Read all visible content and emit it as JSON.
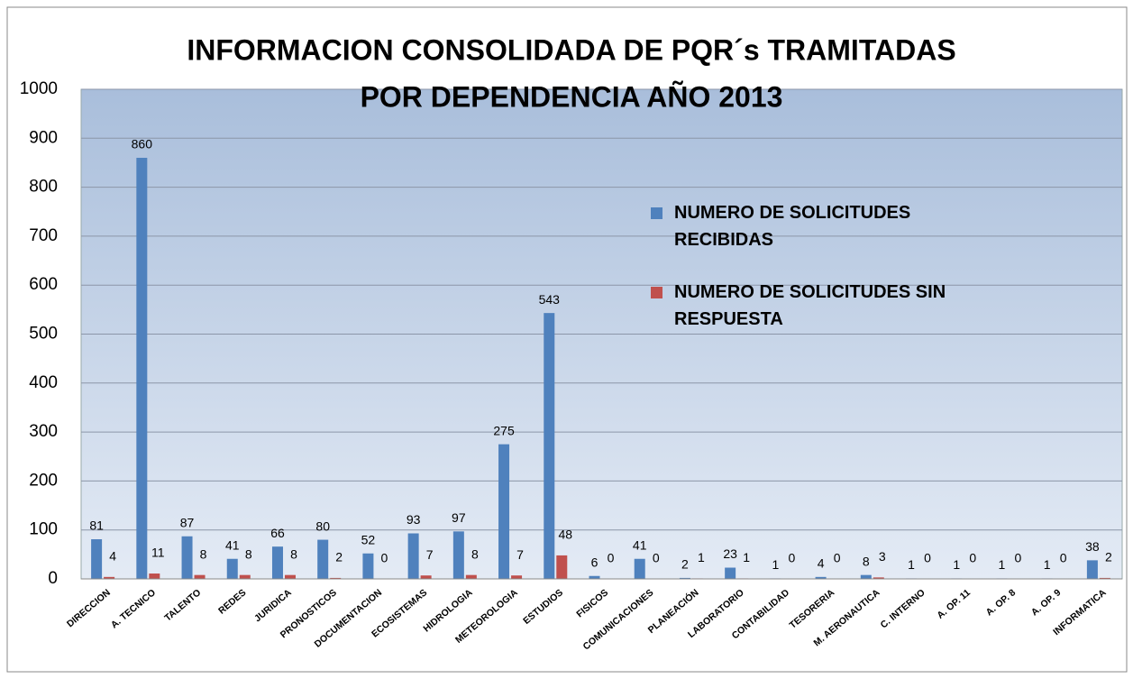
{
  "chart_data": {
    "type": "bar",
    "title": [
      "INFORMACION CONSOLIDADA DE PQR´s TRAMITADAS",
      "POR DEPENDENCIA AÑO 2013"
    ],
    "categories": [
      "DIRECCION",
      "A. TECNICO",
      "TALENTO",
      "REDES",
      "JURIDICA",
      "PRONOSTICOS",
      "DOCUMENTACION",
      "ECOSISTEMAS",
      "HIDROLOGIA",
      "METEOROLOGIA",
      "ESTUDIOS",
      "FISICOS",
      "COMUNICACIONES",
      "PLANEACIÓN",
      "LABORATORIO",
      "CONTABILIDAD",
      "TESORERIA",
      "M. AERONAUTICA",
      "C. INTERNO",
      "A. OP. 11",
      "A. OP. 8",
      "A. OP. 9",
      "INFORMATICA"
    ],
    "series": [
      {
        "name": "NUMERO DE SOLICITUDES RECIBIDAS",
        "color": "#4f81bd",
        "values": [
          81,
          860,
          87,
          41,
          66,
          80,
          52,
          93,
          97,
          275,
          543,
          6,
          41,
          2,
          23,
          1,
          4,
          8,
          1,
          1,
          1,
          1,
          38
        ]
      },
      {
        "name": "NUMERO DE SOLICITUDES SIN RESPUESTA",
        "color": "#c0504d",
        "values": [
          4,
          11,
          8,
          8,
          8,
          2,
          0,
          7,
          8,
          7,
          48,
          0,
          0,
          1,
          1,
          0,
          0,
          3,
          0,
          0,
          0,
          0,
          2
        ]
      }
    ],
    "ylim": [
      0,
      1000
    ],
    "yticks": [
      0,
      100,
      200,
      300,
      400,
      500,
      600,
      700,
      800,
      900,
      1000
    ],
    "grid": true
  }
}
